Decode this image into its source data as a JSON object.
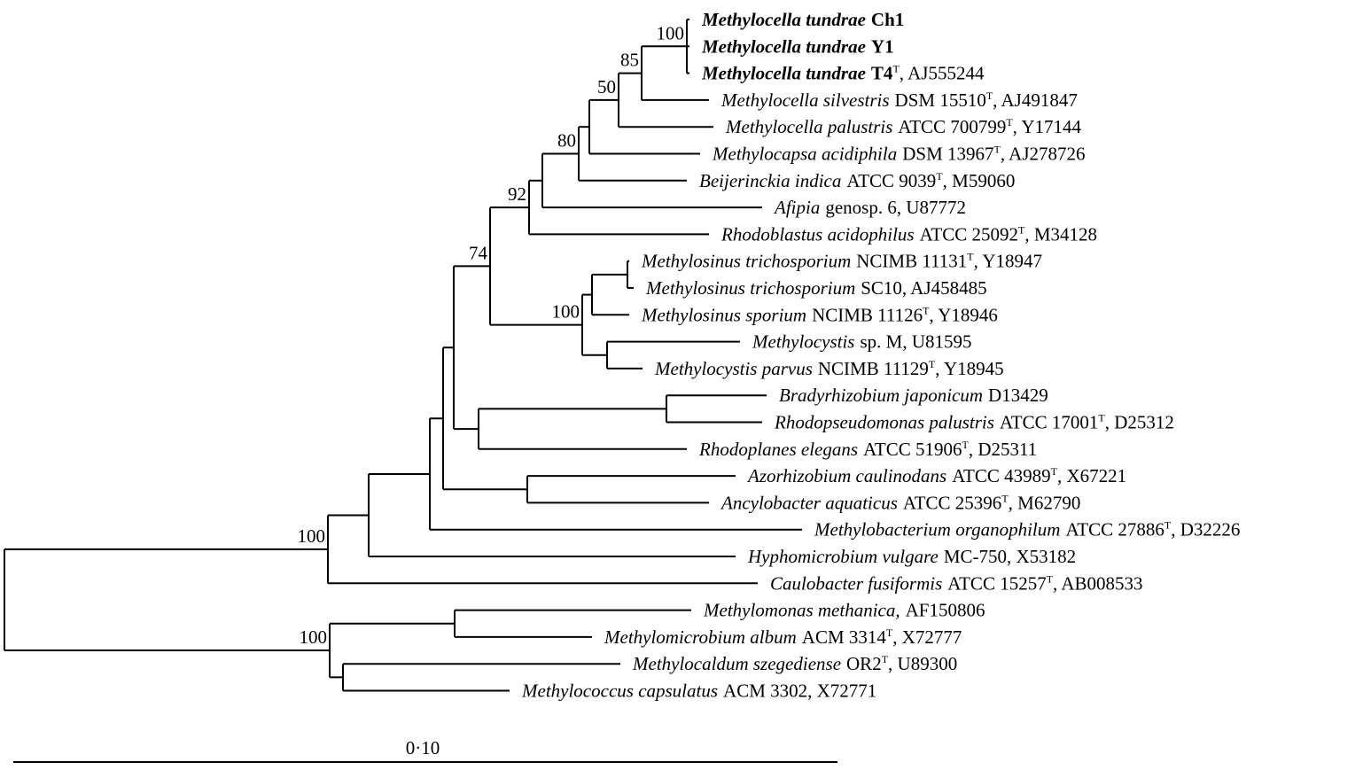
{
  "leaves": [
    {
      "name": "Methylocella tundrae",
      "rest": "Ch1",
      "bold": true
    },
    {
      "name": "Methylocella tundrae",
      "rest": "Y1",
      "bold": true
    },
    {
      "name": "Methylocella tundrae",
      "rest": "T4",
      "sup": "T",
      "after": ", AJ555244",
      "bold": true
    },
    {
      "name": "Methylocella silvestris",
      "rest": "DSM 15510",
      "sup": "T",
      "after": ", AJ491847"
    },
    {
      "name": "Methylocella palustris",
      "rest": "ATCC 700799",
      "sup": "T",
      "after": ", Y17144"
    },
    {
      "name": "Methylocapsa acidiphila",
      "rest": "DSM 13967",
      "sup": "T",
      "after": ", AJ278726"
    },
    {
      "name": "Beijerinckia indica",
      "rest": "ATCC 9039",
      "sup": "T",
      "after": ", M59060"
    },
    {
      "name": "Afipia",
      "rest": "genosp. 6, U87772"
    },
    {
      "name": "Rhodoblastus acidophilus",
      "rest": "ATCC 25092",
      "sup": "T",
      "after": ", M34128"
    },
    {
      "name": "Methylosinus trichosporium",
      "rest": "NCIMB 11131",
      "sup": "T",
      "after": ", Y18947"
    },
    {
      "name": "Methylosinus trichosporium",
      "rest": "SC10, AJ458485"
    },
    {
      "name": "Methylosinus sporium",
      "rest": "NCIMB 11126",
      "sup": "T",
      "after": ", Y18946"
    },
    {
      "name": "Methylocystis",
      "rest": "sp. M, U81595"
    },
    {
      "name": "Methylocystis parvus",
      "rest": "NCIMB 11129",
      "sup": "T",
      "after": ", Y18945"
    },
    {
      "name": "Bradyrhizobium japonicum",
      "rest": "D13429"
    },
    {
      "name": "Rhodopseudomonas palustris",
      "rest": "ATCC 17001",
      "sup": "T",
      "after": ", D25312"
    },
    {
      "name": "Rhodoplanes elegans",
      "rest": "ATCC 51906",
      "sup": "T",
      "after": ", D25311"
    },
    {
      "name": "Azorhizobium caulinodans",
      "rest": "ATCC 43989",
      "sup": "T",
      "after": ", X67221"
    },
    {
      "name": "Ancylobacter aquaticus",
      "rest": "ATCC 25396",
      "sup": "T",
      "after": ", M62790"
    },
    {
      "name": "Methylobacterium organophilum",
      "rest": "ATCC 27886",
      "sup": "T",
      "after": ", D32226"
    },
    {
      "name": "Hyphomicrobium vulgare",
      "rest": "MC-750, X53182"
    },
    {
      "name": "Caulobacter fusiformis",
      "rest": "ATCC 15257",
      "sup": "T",
      "after": ", AB008533"
    },
    {
      "name": "Methylomonas methanica,",
      "rest": "AF150806"
    },
    {
      "name": "Methylomicrobium album",
      "rest": "ACM 3314",
      "sup": "T",
      "after": ", X72777"
    },
    {
      "name": "Methylocaldum szegediense",
      "rest": "OR2",
      "sup": "T",
      "after": ", U89300"
    },
    {
      "name": "Methylococcus capsulatus",
      "rest": "ACM 3302, X72771"
    }
  ],
  "bootstrap": [
    100,
    85,
    50,
    80,
    92,
    74,
    100,
    100,
    100
  ],
  "scale_bar": {
    "label": "0·10"
  }
}
